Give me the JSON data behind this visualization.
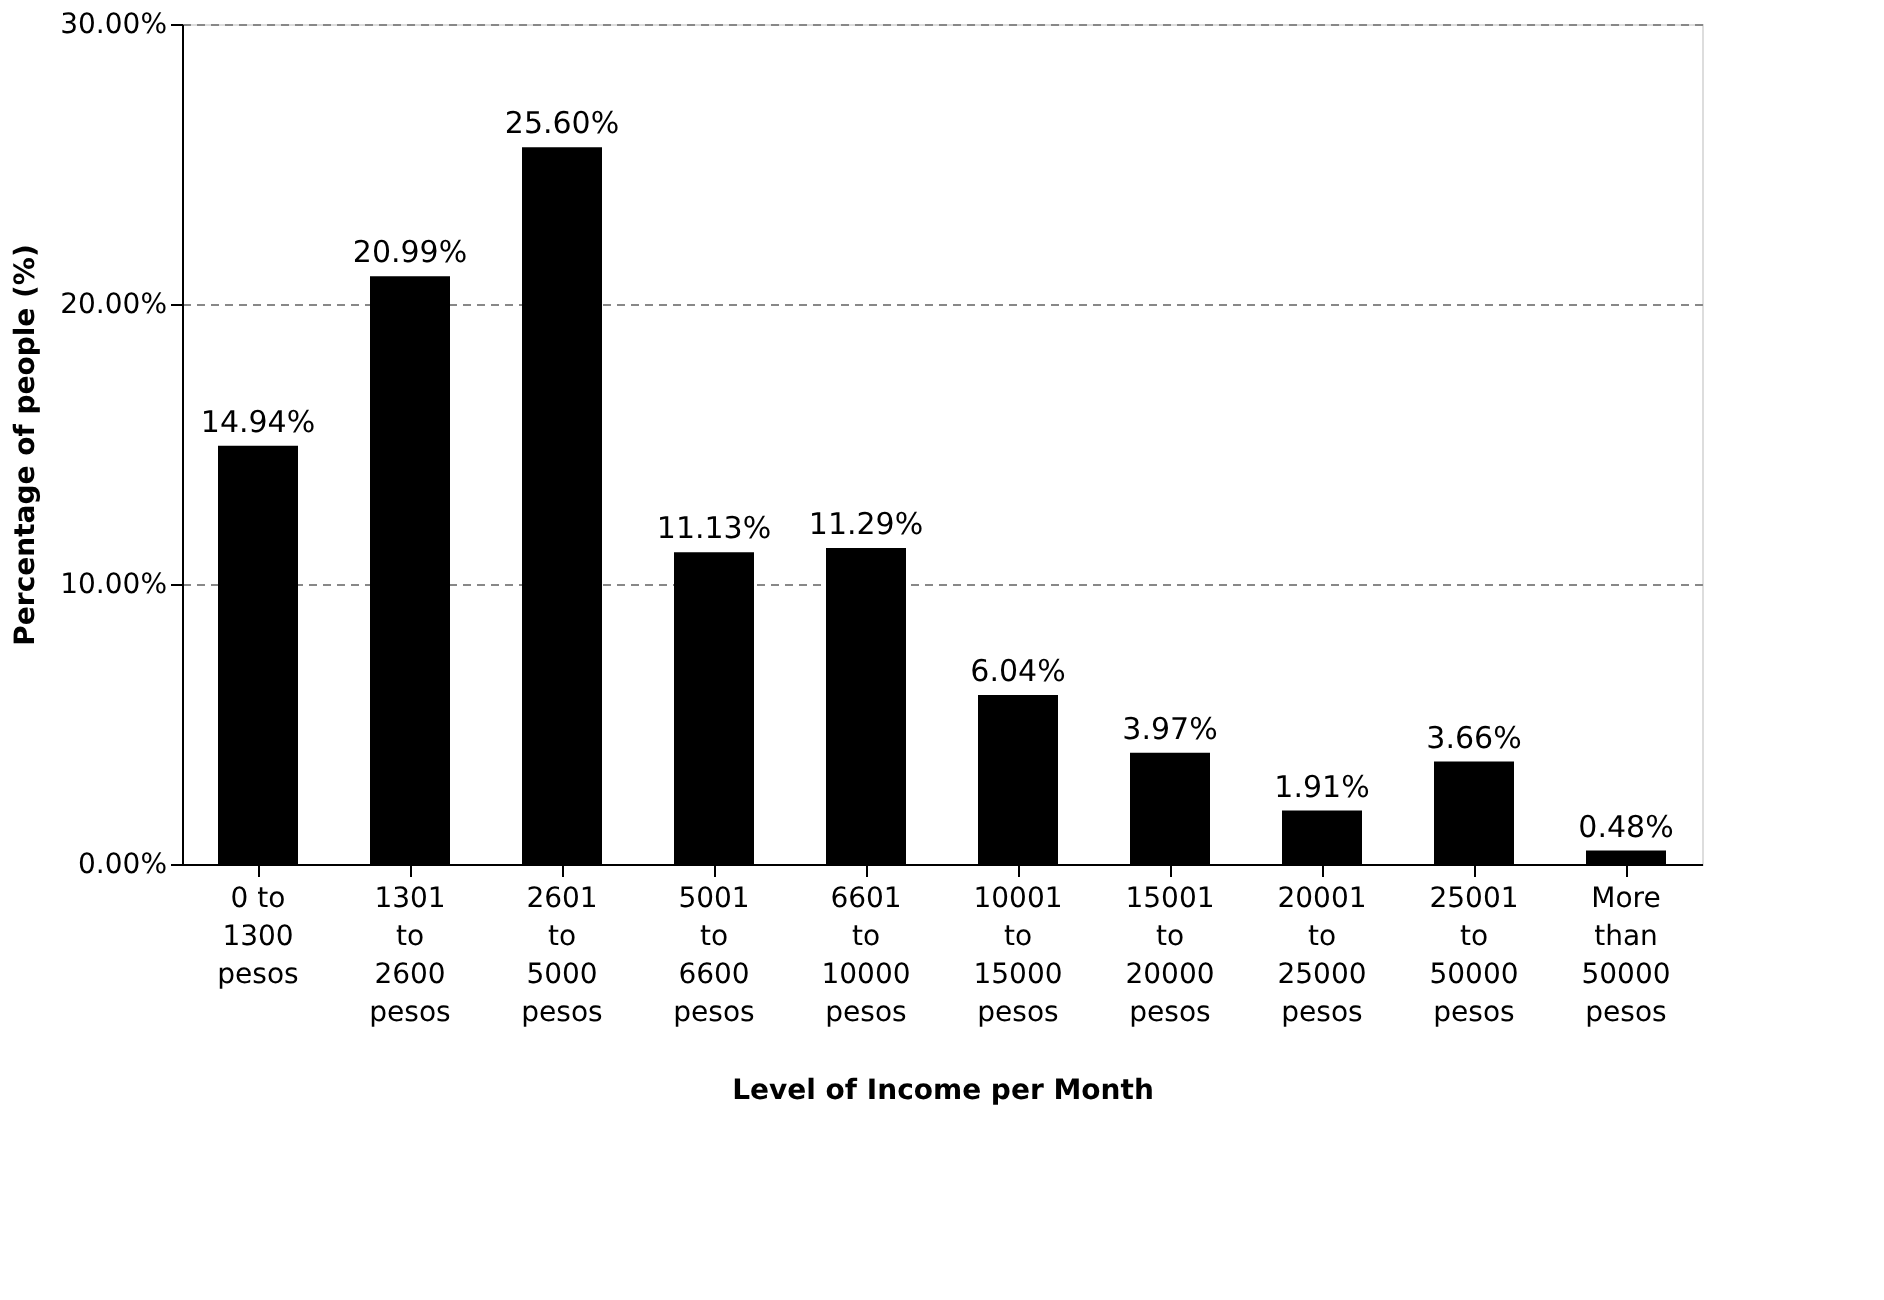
{
  "chart_data": {
    "type": "bar",
    "xlabel": "Level of Income per Month",
    "ylabel": "Percentage of people (%)",
    "categories": [
      "0 to\n1300\npesos",
      "1301\nto\n2600\npesos",
      "2601\nto\n5000\npesos",
      "5001\nto\n6600\npesos",
      "6601\nto\n10000\npesos",
      "10001\nto\n15000\npesos",
      "15001\nto\n20000\npesos",
      "20001\nto\n25000\npesos",
      "25001\nto\n50000\npesos",
      "More\nthan\n50000\npesos"
    ],
    "values": [
      14.94,
      20.99,
      25.6,
      11.13,
      11.29,
      6.04,
      3.97,
      1.91,
      3.66,
      0.48
    ],
    "value_labels": [
      "14.94%",
      "20.99%",
      "25.60%",
      "11.13%",
      "11.29%",
      "6.04%",
      "3.97%",
      "1.91%",
      "3.66%",
      "0.48%"
    ],
    "color": "#000000",
    "ylim": [
      0,
      30
    ],
    "yticks": [
      {
        "value": 0,
        "label": "0.00%"
      },
      {
        "value": 10,
        "label": "10.00%"
      },
      {
        "value": 20,
        "label": "20.00%"
      },
      {
        "value": 30,
        "label": "30.00%"
      }
    ],
    "grid": "y"
  }
}
